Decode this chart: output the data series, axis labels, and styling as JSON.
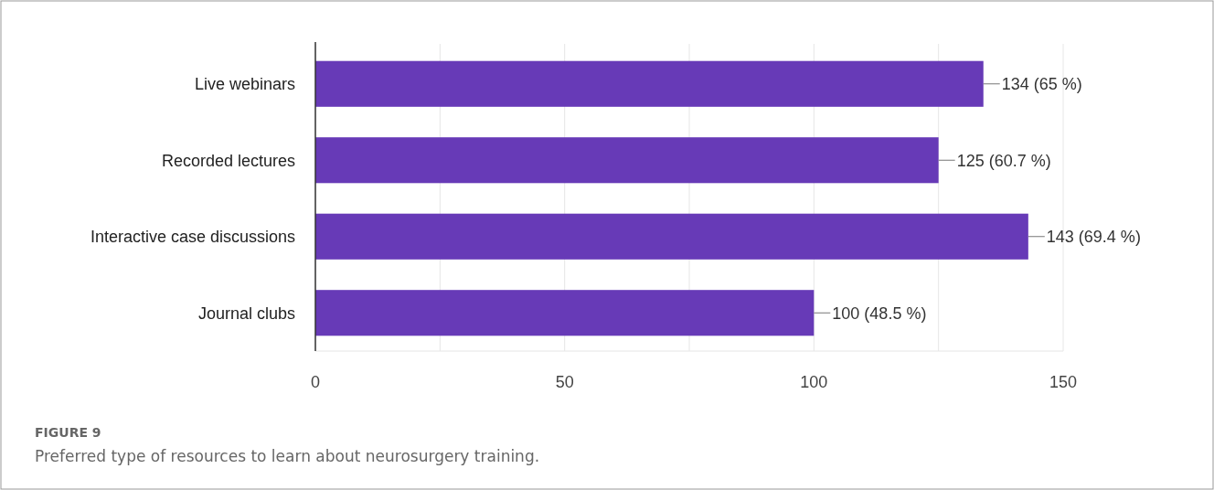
{
  "chart_data": {
    "type": "bar",
    "orientation": "horizontal",
    "categories": [
      "Live webinars",
      "Recorded lectures",
      "Interactive case discussions",
      "Journal clubs"
    ],
    "values": [
      134,
      125,
      143,
      100
    ],
    "value_labels": [
      "134 (65 %)",
      "125 (60.7 %)",
      "143 (69.4 %)",
      "100 (48.5 %)"
    ],
    "color": "#673ab7",
    "xlim": [
      0,
      150
    ],
    "xticks": [
      0,
      {
        "value": 25,
        "label": null
      },
      50,
      {
        "value": 75,
        "label": null
      },
      100,
      {
        "value": 125,
        "label": null
      },
      150
    ],
    "grid": "x",
    "annotations": [
      "FIGURE 9",
      "Preferred type of resources to learn about neurosurgery training."
    ]
  }
}
